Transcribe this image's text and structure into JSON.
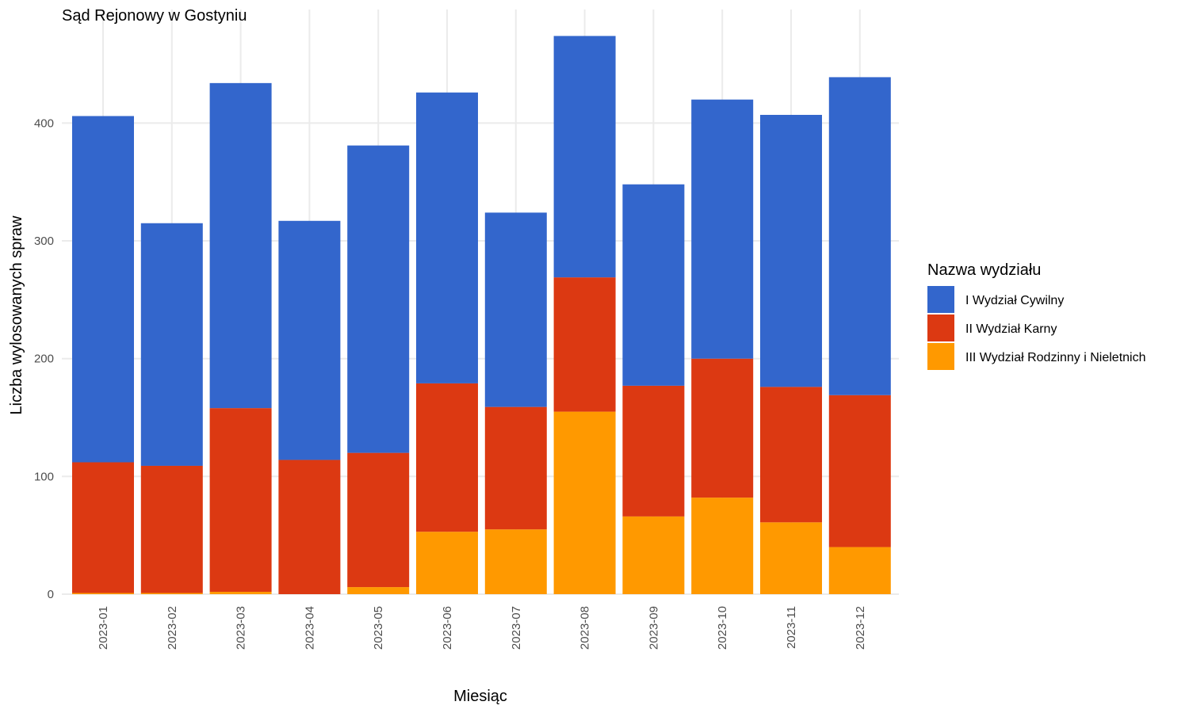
{
  "chart_data": {
    "type": "bar",
    "stacked": true,
    "title": "Sąd Rejonowy w Gostyniu",
    "xlabel": "Miesiąc",
    "ylabel": "Liczba wylosowanych spraw",
    "ylim": [
      0,
      480
    ],
    "yticks": [
      0,
      100,
      200,
      300,
      400
    ],
    "grid": true,
    "legend_position": "right",
    "categories": [
      "2023-01",
      "2023-02",
      "2023-03",
      "2023-04",
      "2023-05",
      "2023-06",
      "2023-07",
      "2023-08",
      "2023-09",
      "2023-10",
      "2023-11",
      "2023-12"
    ],
    "legend_title": "Nazwa wydziału",
    "series": [
      {
        "name": "III Wydział Rodzinny i Nieletnich",
        "color": "#FF9900",
        "values": [
          1,
          1,
          2,
          0,
          6,
          53,
          55,
          155,
          66,
          82,
          61,
          40
        ]
      },
      {
        "name": "II Wydział Karny",
        "color": "#DC3912",
        "values": [
          111,
          108,
          156,
          114,
          114,
          126,
          104,
          114,
          111,
          118,
          115,
          129
        ]
      },
      {
        "name": "I Wydział Cywilny",
        "color": "#3366CC",
        "values": [
          294,
          206,
          276,
          203,
          261,
          247,
          165,
          205,
          171,
          220,
          231,
          270
        ]
      }
    ],
    "legend_order": [
      "I Wydział Cywilny",
      "II Wydział Karny",
      "III Wydział Rodzinny i Nieletnich"
    ]
  }
}
